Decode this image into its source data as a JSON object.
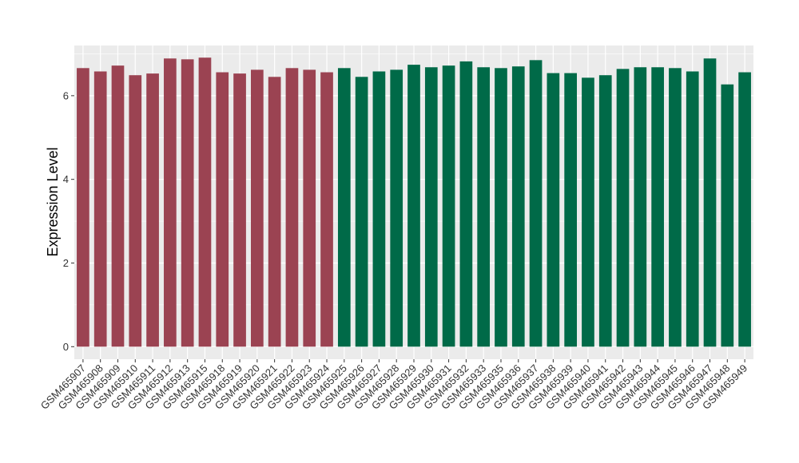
{
  "chart_data": {
    "type": "bar",
    "ylabel": "Expression Level",
    "xlabel": "",
    "ylim": [
      -0.3,
      7.2
    ],
    "yticks": [
      0,
      2,
      4,
      6
    ],
    "grid": true,
    "colors": {
      "group1": "#9b4352",
      "group2": "#006a48",
      "panel": "#ebebeb",
      "grid": "#ffffff"
    },
    "categories": [
      "GSM465907",
      "GSM465908",
      "GSM465909",
      "GSM465910",
      "GSM465911",
      "GSM465912",
      "GSM465913",
      "GSM465915",
      "GSM465918",
      "GSM465919",
      "GSM465920",
      "GSM465921",
      "GSM465922",
      "GSM465923",
      "GSM465924",
      "GSM465925",
      "GSM465926",
      "GSM465927",
      "GSM465928",
      "GSM465929",
      "GSM465930",
      "GSM465931",
      "GSM465932",
      "GSM465933",
      "GSM465935",
      "GSM465936",
      "GSM465937",
      "GSM465938",
      "GSM465939",
      "GSM465940",
      "GSM465941",
      "GSM465942",
      "GSM465943",
      "GSM465944",
      "GSM465945",
      "GSM465946",
      "GSM465947",
      "GSM465948",
      "GSM465949"
    ],
    "values": [
      6.66,
      6.58,
      6.72,
      6.49,
      6.53,
      6.89,
      6.87,
      6.91,
      6.56,
      6.53,
      6.62,
      6.45,
      6.66,
      6.62,
      6.56,
      6.66,
      6.45,
      6.58,
      6.62,
      6.74,
      6.68,
      6.72,
      6.82,
      6.68,
      6.66,
      6.7,
      6.85,
      6.54,
      6.54,
      6.43,
      6.49,
      6.64,
      6.68,
      6.68,
      6.66,
      6.58,
      6.89,
      6.27,
      6.56
    ],
    "groups": [
      1,
      1,
      1,
      1,
      1,
      1,
      1,
      1,
      1,
      1,
      1,
      1,
      1,
      1,
      1,
      2,
      2,
      2,
      2,
      2,
      2,
      2,
      2,
      2,
      2,
      2,
      2,
      2,
      2,
      2,
      2,
      2,
      2,
      2,
      2,
      2,
      2,
      2,
      2
    ]
  }
}
